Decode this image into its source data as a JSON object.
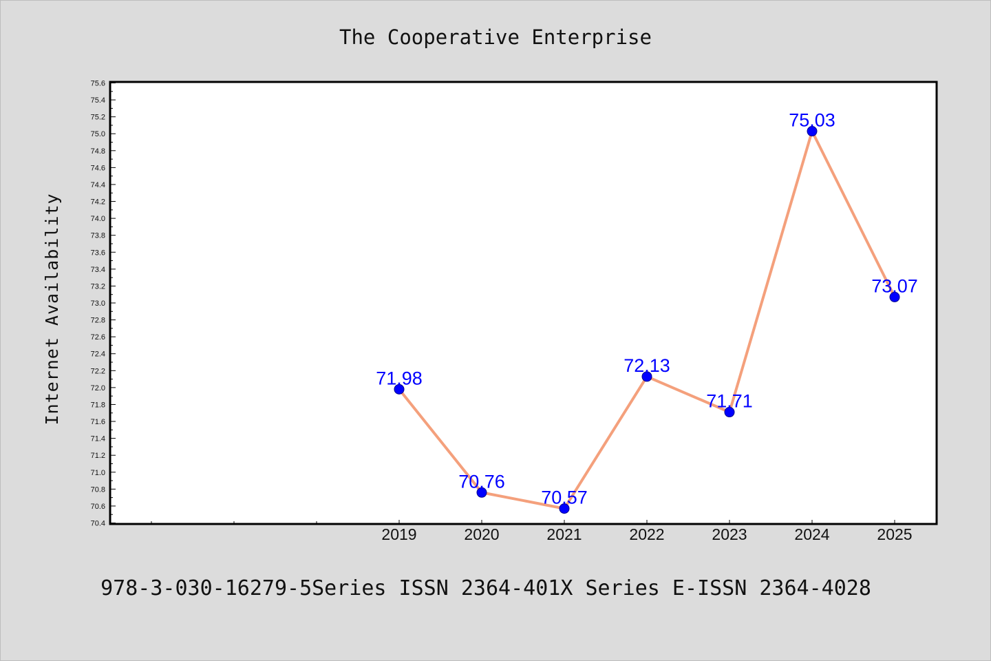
{
  "chart_data": {
    "type": "line",
    "title": "The Cooperative Enterprise",
    "xlabel": "",
    "ylabel": "Internet Availability",
    "categories": [
      "2019",
      "2020",
      "2021",
      "2022",
      "2023",
      "2024",
      "2025"
    ],
    "values": [
      71.98,
      70.76,
      70.57,
      72.13,
      71.71,
      75.03,
      73.07
    ],
    "value_labels": [
      "71.98",
      "70.76",
      "70.57",
      "72.13",
      "71.71",
      "75.03",
      "73.07"
    ],
    "ylim": [
      70.4,
      75.6
    ],
    "yticks": [
      "70.4",
      "70.6",
      "70.8",
      "71.0",
      "71.2",
      "71.4",
      "71.6",
      "71.8",
      "72.0",
      "72.2",
      "72.4",
      "72.6",
      "72.8",
      "73.0",
      "73.2",
      "73.4",
      "73.6",
      "73.8",
      "74.0",
      "74.2",
      "74.4",
      "74.6",
      "74.8",
      "75.0",
      "75.2",
      "75.4",
      "75.6"
    ],
    "grid": false,
    "legend": "none",
    "line_color": "#f4a07c",
    "marker_color": "#0000ff",
    "label_color": "#0000ff",
    "background_color": "#dcdcdc",
    "plot_background": "#ffffff"
  },
  "footer": {
    "text": "978-3-030-16279-5Series ISSN 2364-401X Series E-ISSN 2364-4028"
  }
}
